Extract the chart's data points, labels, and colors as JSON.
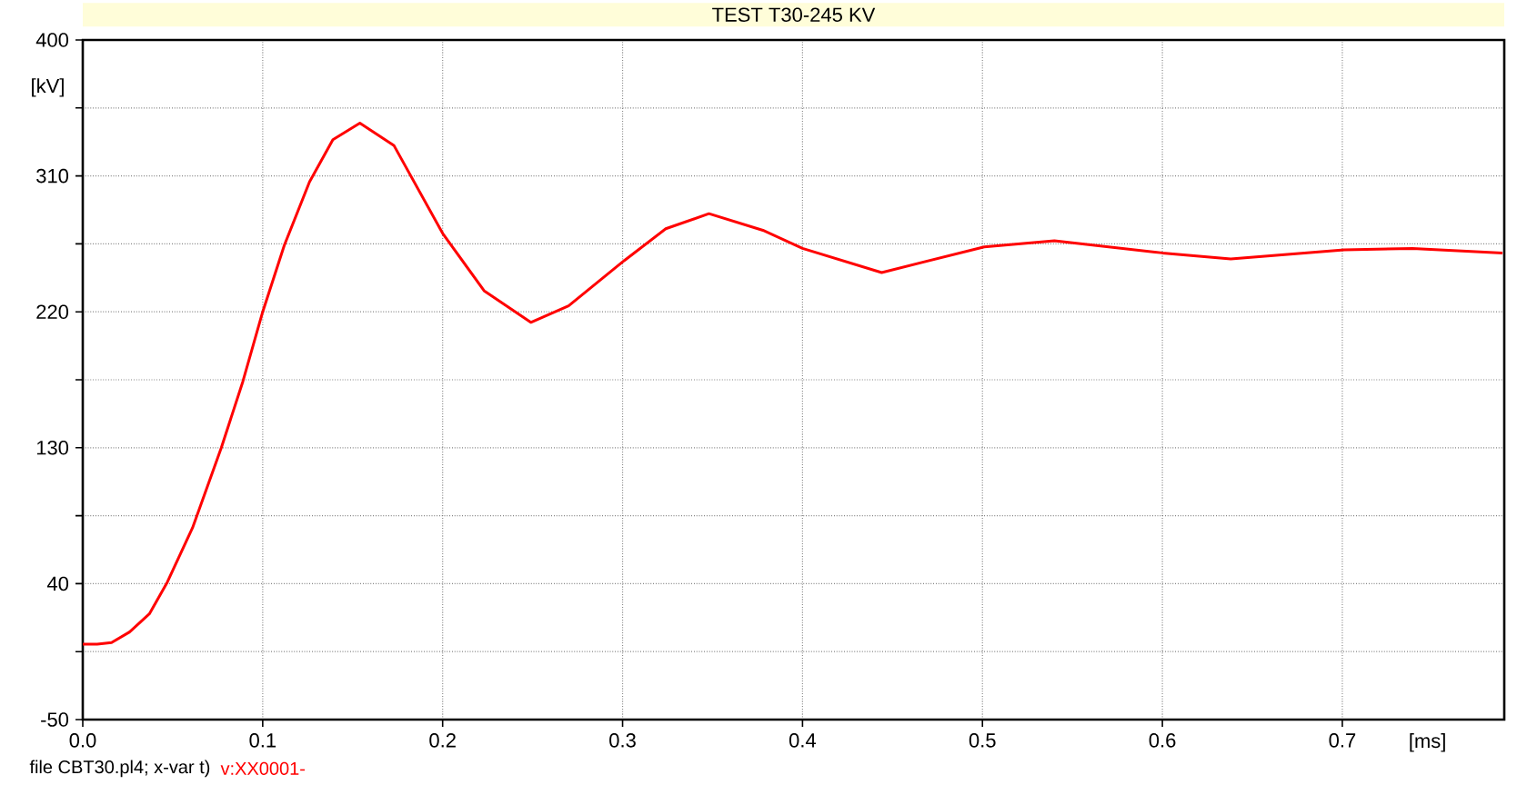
{
  "chart_data": {
    "type": "line",
    "title": "TEST T30-245 KV",
    "xlabel": "[ms]",
    "ylabel": "[kV]",
    "annotations": [
      "file CBT30.pl4; x-var t)"
    ],
    "xlim": [
      0,
      0.79
    ],
    "ylim": [
      -50,
      400
    ],
    "xticks": [
      {
        "value": 0,
        "label": "0.0"
      },
      0.1,
      0.2,
      0.3,
      0.4,
      0.5,
      0.6,
      0.7
    ],
    "yticks": [
      -50,
      {
        "value": -5,
        "label": null
      },
      40,
      {
        "value": 85,
        "label": null
      },
      130,
      {
        "value": 175,
        "label": null
      },
      220,
      {
        "value": 265,
        "label": null
      },
      310,
      {
        "value": 355,
        "label": null
      },
      400
    ],
    "grid": true,
    "legend": "bottom left",
    "line_style": "solid",
    "marker": "none",
    "series": [
      {
        "name": "v:XX0001-",
        "color": "#ff0000",
        "x": [
          0,
          0.008,
          0.016,
          0.026,
          0.037,
          0.047,
          0.061,
          0.077,
          0.089,
          0.1,
          0.112,
          0.126,
          0.139,
          0.154,
          0.173,
          0.2,
          0.223,
          0.249,
          0.27,
          0.301,
          0.324,
          0.348,
          0.378,
          0.4,
          0.444,
          0.501,
          0.54,
          0.6,
          0.638,
          0.701,
          0.739,
          0.789
        ],
        "values": [
          0,
          0,
          1,
          8,
          20,
          41,
          77,
          130,
          174,
          220,
          264,
          306,
          334,
          345,
          330,
          272,
          234,
          213,
          224,
          254,
          275,
          285,
          274,
          262,
          246,
          263,
          267,
          259,
          255,
          261,
          262,
          259
        ]
      }
    ]
  }
}
